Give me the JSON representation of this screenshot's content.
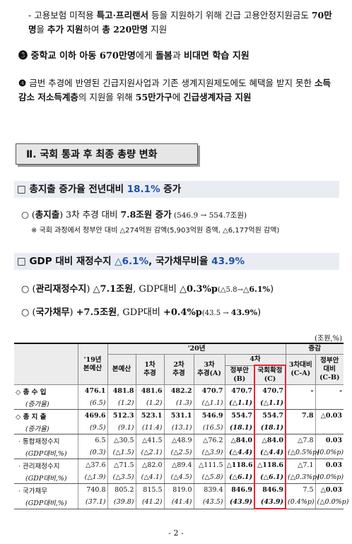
{
  "intro": {
    "p1": [
      "- 고용보험 미적용 ",
      "특고·프리랜서",
      " 등을 지원하기 위해 긴급 고용안정지원금도 ",
      "70만명",
      "을 ",
      "추가 지원",
      "하여 ",
      "총 220만명",
      " 지원"
    ],
    "p2": [
      "❸",
      " 중학교 이하 아동 670만명",
      "에게 ",
      "돌봄",
      "과 ",
      "비대면 학습 지원"
    ],
    "p3": [
      "❹",
      " 금번 추경에 반영된 긴급지원사업과 기존 생계지원제도에도 혜택을 받지 못한 ",
      "소득감소 저소득계층",
      "의 지원을 위해 ",
      "55만가구",
      "에 ",
      "긴급생계자금 지원"
    ]
  },
  "section": "Ⅱ. 국회 통과 후 최종 총량 변화",
  "heading1": [
    "□",
    " 총지출 증가율 전년대비 ",
    "18.1%",
    " 증가"
  ],
  "line1": [
    "○",
    " (",
    "총지출",
    ") 3차 추경 대비 ",
    "7.8조원 증가",
    " (546.9 → 554.7조원)"
  ],
  "note": "※ 국회 과정에서 정부안 대비 △274억원 감액(5,903억원 증액, △6,177억원 감액)",
  "heading2": [
    "□",
    " GDP 대비 재정수지 ",
    "△6.1%",
    ", 국가채무비율 ",
    "43.9%"
  ],
  "line2": [
    "○",
    " (",
    "관리재정수지",
    ") ",
    "△7.1조원",
    ", GDP대비 ",
    "△0.3%p",
    "(△5.8→",
    "△6.1%",
    ")"
  ],
  "line3": [
    "○",
    " (",
    "국가채무",
    ") ",
    "+7.5조원",
    ", GDP대비 ",
    "+0.4%p",
    "(43.5 → ",
    "43.9%",
    ")"
  ],
  "table": {
    "unit": "(조원,%)",
    "columns": {
      "y19": "'19년\n본예산",
      "y20": "'20년",
      "main": "본예산",
      "s1": "1차\n추경",
      "s2": "2차\n추경",
      "s3": "3차\n추경(A)",
      "s4": "4차",
      "gov": "정부안\n(B)",
      "nat": "국회확정\n(C)",
      "diff": "증감",
      "vs3": "3차대비\n(C-A)",
      "vsgov": "정부안\n대비\n(C-B)"
    },
    "rows": [
      [
        "◇ 총 수 입",
        "476.1",
        "481.8",
        "481.6",
        "482.2",
        "470.7",
        "470.7",
        "470.7",
        "-",
        "-"
      ],
      [
        "(증가율)",
        "(6.5)",
        "(1.2)",
        "(1.2)",
        "(1.3)",
        "(△1.1)",
        "(△1.1)",
        "(△1.1)"
      ],
      [
        "◇ 총 지 출",
        "469.6",
        "512.3",
        "523.1",
        "531.1",
        "546.9",
        "554.7",
        "554.7",
        "7.8",
        "△0.03"
      ],
      [
        "(증가율)",
        "(9.5)",
        "(9.1)",
        "(11.4)",
        "(13.1)",
        "(16.5)",
        "(18.1)",
        "(18.1)"
      ],
      [
        "· 통합재정수지",
        "6.5",
        "△30.5",
        "△41.5",
        "△48.9",
        "△76.2",
        "△84.0",
        "△84.0",
        "△7.8",
        "0.03"
      ],
      [
        "(GDP대비,%)",
        "(0.3)",
        "(△1.5)",
        "(△2.1)",
        "(△2.5)",
        "(△3.9)",
        "(△4.4)",
        "(△4.4)",
        "(△0.5%p)",
        "(0.0%p)"
      ],
      [
        "· 관리재정수지",
        "△37.6",
        "△71.5",
        "△82.0",
        "△89.4",
        "△111.5",
        "△118.6",
        "△118.6",
        "△7.1",
        "0.03"
      ],
      [
        "(GDP대비,%)",
        "(△1.9)",
        "(△3.5)",
        "(△4.1)",
        "(△4.5)",
        "(△5.8)",
        "(△6.1)",
        "(△6.1)",
        "(△0.3%p)",
        "(0.0%p)"
      ],
      [
        "· 국가채무",
        "740.8",
        "805.2",
        "815.5",
        "819.0",
        "839.4",
        "846.9",
        "846.9",
        "7.5",
        "△0.03"
      ],
      [
        "(GDP대비,%)",
        "(37.1)",
        "(39.8)",
        "(41.2)",
        "(41.4)",
        "(43.5)",
        "(43.9)",
        "(43.9)",
        "(0.4%p)",
        "(△0.0%p)"
      ]
    ]
  },
  "page_number": "- 2 -"
}
